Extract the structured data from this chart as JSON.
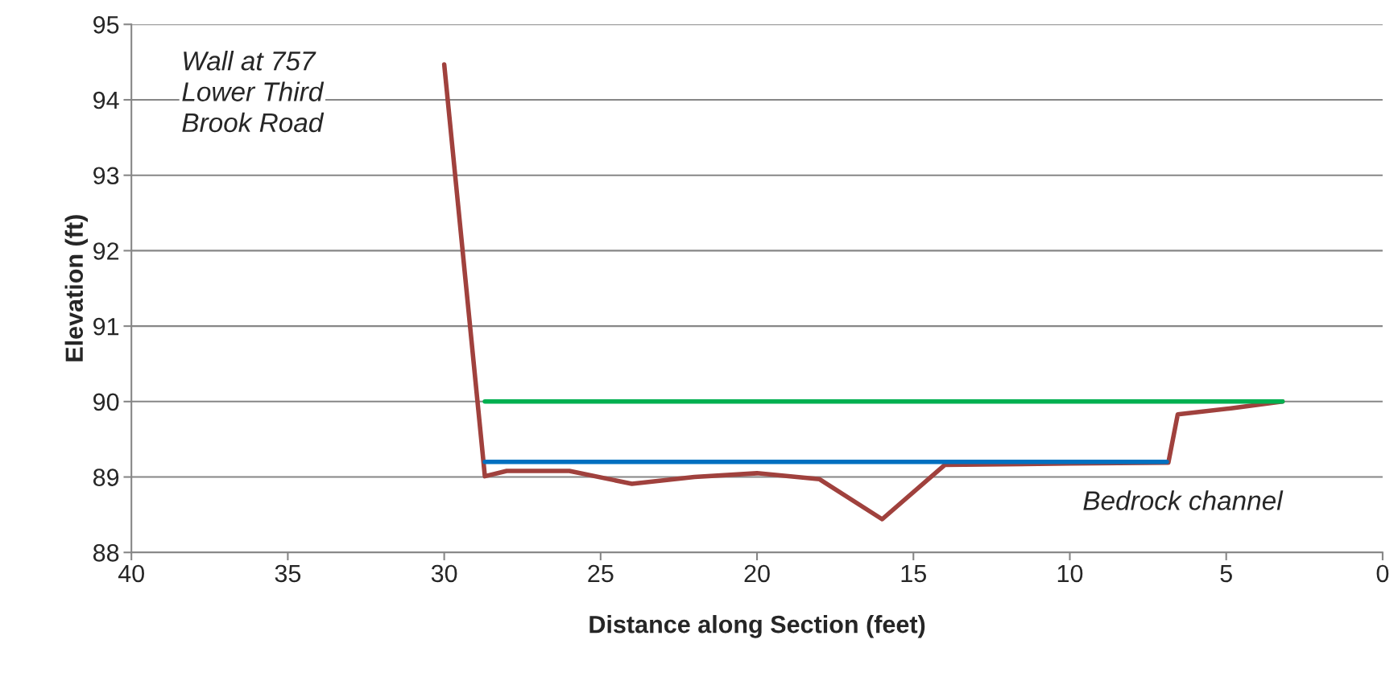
{
  "chart_data": {
    "type": "line",
    "xlabel": "Distance along Section (feet)",
    "ylabel": "Elevation (ft)",
    "xlim": [
      40,
      0
    ],
    "xticks": [
      40,
      35,
      30,
      25,
      20,
      15,
      10,
      5,
      0
    ],
    "ylim": [
      88,
      95
    ],
    "yticks": [
      88,
      89,
      90,
      91,
      92,
      93,
      94,
      95
    ],
    "grid": "y",
    "legend": false,
    "marker": "none",
    "line_style": "solid",
    "series": [
      {
        "color": "#a0413d",
        "x": [
          30,
          28.7,
          28,
          26,
          24,
          22,
          20,
          18,
          16,
          14,
          10,
          6.85,
          6.55,
          4.85,
          3.2
        ],
        "values": [
          94.47,
          89.01,
          89.08,
          89.08,
          88.91,
          89.0,
          89.05,
          88.97,
          88.44,
          89.16,
          89.18,
          89.19,
          89.83,
          89.91,
          90.0
        ]
      },
      {
        "color": "#00b050",
        "x": [
          28.7,
          3.2
        ],
        "values": [
          90.0,
          90.0
        ]
      },
      {
        "color": "#0070c0",
        "x": [
          28.7,
          6.9
        ],
        "values": [
          89.2,
          89.2
        ]
      }
    ],
    "annotations": [
      "Wall at 757\nLower Third\nBrook Road",
      "Bedrock channel"
    ]
  }
}
